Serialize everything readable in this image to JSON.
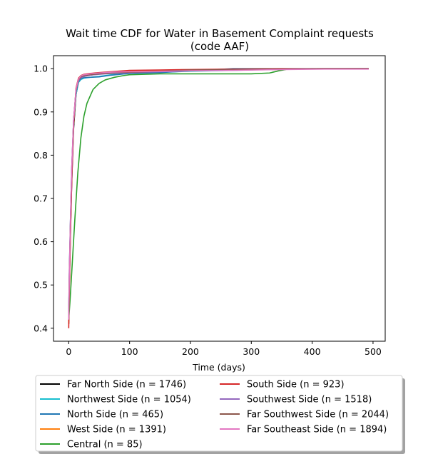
{
  "chart_data": {
    "type": "line",
    "title": "Wait time CDF for Water in Basement Complaint  requests",
    "subtitle": "(code AAF)",
    "xlabel": "Time (days)",
    "ylabel": "",
    "xlim": [
      -25,
      520
    ],
    "ylim": [
      0.37,
      1.03
    ],
    "xticks": [
      0,
      100,
      200,
      300,
      400,
      500
    ],
    "yticks": [
      0.4,
      0.5,
      0.6,
      0.7,
      0.8,
      0.9,
      1.0
    ],
    "ytick_labels": [
      "0.4",
      "0.5",
      "0.6",
      "0.7",
      "0.8",
      "0.9",
      "1.0"
    ],
    "grid": false,
    "legend_placement": "below",
    "series": [
      {
        "name": "Far North Side (n = 1746)",
        "color": "#000000",
        "x": [
          0,
          1,
          3,
          5,
          8,
          12,
          16,
          20,
          25,
          35,
          50,
          70,
          100,
          150,
          200,
          270,
          350,
          420,
          493
        ],
        "y": [
          0.41,
          0.5,
          0.63,
          0.74,
          0.86,
          0.94,
          0.97,
          0.979,
          0.982,
          0.985,
          0.988,
          0.99,
          0.992,
          0.993,
          0.995,
          0.997,
          0.999,
          0.9995,
          1.0
        ]
      },
      {
        "name": "Northwest Side (n = 1054)",
        "color": "#17becf",
        "x": [
          0,
          1,
          3,
          5,
          8,
          12,
          16,
          20,
          25,
          35,
          50,
          70,
          100,
          150,
          200,
          270,
          350,
          420,
          493
        ],
        "y": [
          0.42,
          0.52,
          0.65,
          0.76,
          0.87,
          0.94,
          0.968,
          0.975,
          0.978,
          0.98,
          0.982,
          0.986,
          0.989,
          0.992,
          0.994,
          0.996,
          0.999,
          1.0,
          1.0
        ]
      },
      {
        "name": "North Side (n = 465)",
        "color": "#1f77b4",
        "x": [
          0,
          1,
          3,
          5,
          8,
          12,
          16,
          20,
          25,
          35,
          50,
          70,
          100,
          150,
          200,
          270,
          350,
          420,
          493
        ],
        "y": [
          0.43,
          0.53,
          0.66,
          0.77,
          0.88,
          0.945,
          0.97,
          0.977,
          0.979,
          0.98,
          0.981,
          0.985,
          0.989,
          0.991,
          0.995,
          1.0,
          1.0,
          1.0,
          1.0
        ]
      },
      {
        "name": "West Side (n = 1391)",
        "color": "#ff7f0e",
        "x": [
          0,
          1,
          3,
          5,
          8,
          12,
          16,
          20,
          25,
          35,
          50,
          70,
          100,
          150,
          200,
          270,
          350,
          420,
          493
        ],
        "y": [
          0.41,
          0.5,
          0.63,
          0.75,
          0.87,
          0.95,
          0.975,
          0.982,
          0.985,
          0.988,
          0.99,
          0.992,
          0.994,
          0.995,
          0.996,
          0.997,
          0.999,
          1.0,
          1.0
        ]
      },
      {
        "name": "Central (n = 85)",
        "color": "#2ca02c",
        "x": [
          0,
          2,
          5,
          10,
          15,
          20,
          25,
          30,
          40,
          50,
          60,
          75,
          90,
          100,
          150,
          200,
          250,
          300,
          330,
          345,
          360,
          400,
          493
        ],
        "y": [
          0.42,
          0.46,
          0.53,
          0.65,
          0.76,
          0.84,
          0.89,
          0.92,
          0.952,
          0.966,
          0.974,
          0.98,
          0.984,
          0.986,
          0.988,
          0.988,
          0.988,
          0.988,
          0.99,
          0.995,
          0.999,
          1.0,
          1.0
        ]
      },
      {
        "name": "South Side (n = 923)",
        "color": "#d62728",
        "x": [
          0,
          1,
          3,
          5,
          8,
          12,
          16,
          20,
          25,
          35,
          50,
          70,
          100,
          150,
          200,
          270,
          350,
          420,
          493
        ],
        "y": [
          0.4,
          0.49,
          0.62,
          0.74,
          0.87,
          0.955,
          0.978,
          0.984,
          0.987,
          0.989,
          0.991,
          0.993,
          0.996,
          0.997,
          0.998,
          0.999,
          1.0,
          1.0,
          1.0
        ]
      },
      {
        "name": "Southwest Side (n = 1518)",
        "color": "#9467bd",
        "x": [
          0,
          1,
          3,
          5,
          8,
          12,
          16,
          20,
          25,
          35,
          50,
          70,
          100,
          150,
          200,
          270,
          350,
          420,
          493
        ],
        "y": [
          0.43,
          0.53,
          0.66,
          0.77,
          0.88,
          0.95,
          0.972,
          0.979,
          0.982,
          0.985,
          0.987,
          0.989,
          0.991,
          0.993,
          0.995,
          0.997,
          0.999,
          1.0,
          1.0
        ]
      },
      {
        "name": "Far Southwest Side (n = 2044)",
        "color": "#8c564b",
        "x": [
          0,
          1,
          3,
          5,
          8,
          12,
          16,
          20,
          25,
          35,
          50,
          70,
          100,
          150,
          200,
          270,
          350,
          420,
          493
        ],
        "y": [
          0.42,
          0.52,
          0.65,
          0.76,
          0.88,
          0.95,
          0.974,
          0.981,
          0.984,
          0.986,
          0.988,
          0.99,
          0.992,
          0.994,
          0.997,
          0.998,
          0.999,
          1.0,
          1.0
        ]
      },
      {
        "name": "Far Southeast Side (n = 1894)",
        "color": "#e377c2",
        "x": [
          0,
          1,
          3,
          5,
          8,
          12,
          16,
          20,
          25,
          35,
          50,
          70,
          100,
          150,
          200,
          270,
          350,
          420,
          493
        ],
        "y": [
          0.42,
          0.52,
          0.66,
          0.77,
          0.88,
          0.952,
          0.976,
          0.983,
          0.986,
          0.988,
          0.99,
          0.992,
          0.993,
          0.994,
          0.995,
          0.996,
          0.998,
          0.999,
          0.999
        ]
      }
    ],
    "legend_columns": [
      [
        "Far North Side (n = 1746)",
        "Northwest Side (n = 1054)",
        "North Side (n = 465)",
        "West Side (n = 1391)",
        "Central (n = 85)"
      ],
      [
        "South Side (n = 923)",
        "Southwest Side (n = 1518)",
        "Far Southwest Side (n = 2044)",
        "Far Southeast Side (n = 1894)"
      ]
    ]
  }
}
